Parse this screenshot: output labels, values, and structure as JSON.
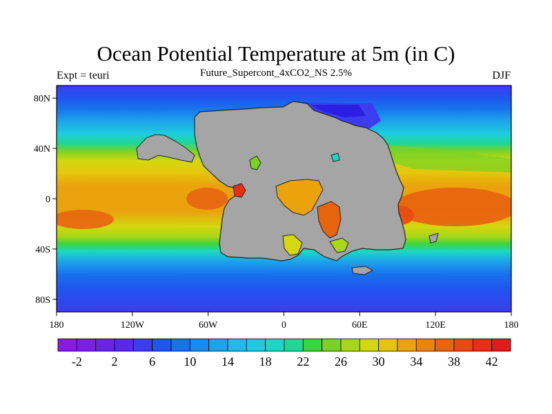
{
  "header": {
    "title": "Ocean Potential Temperature at 5m (in C)",
    "left": "Expt = teuri",
    "center": "Future_Supercont_4xCO2_NS 2.5%",
    "right": "DJF"
  },
  "axes": {
    "x_ticks": [
      "180",
      "120W",
      "60W",
      "0",
      "60E",
      "120E",
      "180"
    ],
    "y_ticks": [
      "80N",
      "40N",
      "0",
      "40S",
      "80S"
    ],
    "y_values": [
      80,
      40,
      0,
      -40,
      -80
    ],
    "x_values": [
      -180,
      -120,
      -60,
      0,
      60,
      120,
      180
    ],
    "lat_range": [
      -90,
      90
    ],
    "lon_range": [
      -180,
      180
    ]
  },
  "colorbar": {
    "labels": [
      "-2",
      "2",
      "6",
      "10",
      "14",
      "18",
      "22",
      "26",
      "30",
      "34",
      "38",
      "42"
    ],
    "colors": [
      "#8a19e6",
      "#7c1ee8",
      "#6a23ea",
      "#5a28ec",
      "#3d3cf0",
      "#2055f0",
      "#1872ee",
      "#1a8bec",
      "#1da3ea",
      "#22b8e8",
      "#1fcbe0",
      "#1ad8c4",
      "#1fd895",
      "#3ed43f",
      "#7ad226",
      "#a8d618",
      "#d4d810",
      "#e6c40c",
      "#eaa20d",
      "#ea8410",
      "#e86510",
      "#e84a12",
      "#e82e14",
      "#e41a1a"
    ]
  },
  "map": {
    "land_color": "#a5a5a5",
    "zonal_bands": [
      {
        "lat": 90,
        "color": "#3d3cf0"
      },
      {
        "lat": 80,
        "color": "#2055f0"
      },
      {
        "lat": 72,
        "color": "#1872ee"
      },
      {
        "lat": 62,
        "color": "#1da3ea"
      },
      {
        "lat": 52,
        "color": "#1fcbe0"
      },
      {
        "lat": 44,
        "color": "#1fd895"
      },
      {
        "lat": 38,
        "color": "#7ad226"
      },
      {
        "lat": 30,
        "color": "#d4d810"
      },
      {
        "lat": 20,
        "color": "#e6c40c"
      },
      {
        "lat": 10,
        "color": "#eaa20d"
      },
      {
        "lat": 0,
        "color": "#eaa20d"
      },
      {
        "lat": -10,
        "color": "#eaa20d"
      },
      {
        "lat": -22,
        "color": "#d4d810"
      },
      {
        "lat": -30,
        "color": "#a8d618"
      },
      {
        "lat": -36,
        "color": "#3ed43f"
      },
      {
        "lat": -42,
        "color": "#1ad8c4"
      },
      {
        "lat": -50,
        "color": "#1da3ea"
      },
      {
        "lat": -60,
        "color": "#1872ee"
      },
      {
        "lat": -72,
        "color": "#2055f0"
      },
      {
        "lat": -90,
        "color": "#3d3cf0"
      }
    ]
  }
}
